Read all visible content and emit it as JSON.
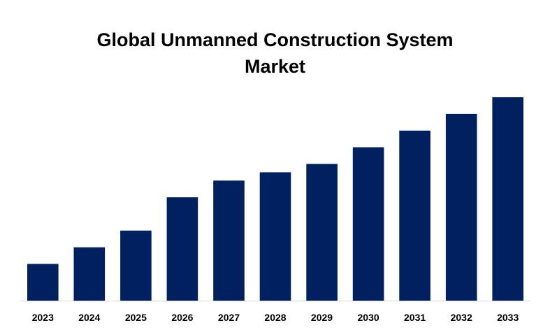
{
  "chart_data": {
    "type": "bar",
    "title_lines": [
      "Global Unmanned Construction System",
      "Market"
    ],
    "categories": [
      "2023",
      "2024",
      "2025",
      "2026",
      "2027",
      "2028",
      "2029",
      "2030",
      "2031",
      "2032",
      "2033"
    ],
    "values": [
      2.2,
      3.2,
      4.2,
      6.2,
      7.2,
      7.7,
      8.2,
      9.2,
      10.2,
      11.2,
      12.2
    ],
    "xlabel": "",
    "ylabel": "",
    "ylim": [
      0,
      13
    ],
    "grid": false,
    "legend": "none",
    "bar_color": "#002060",
    "axis_color": "#d9d9d9"
  }
}
